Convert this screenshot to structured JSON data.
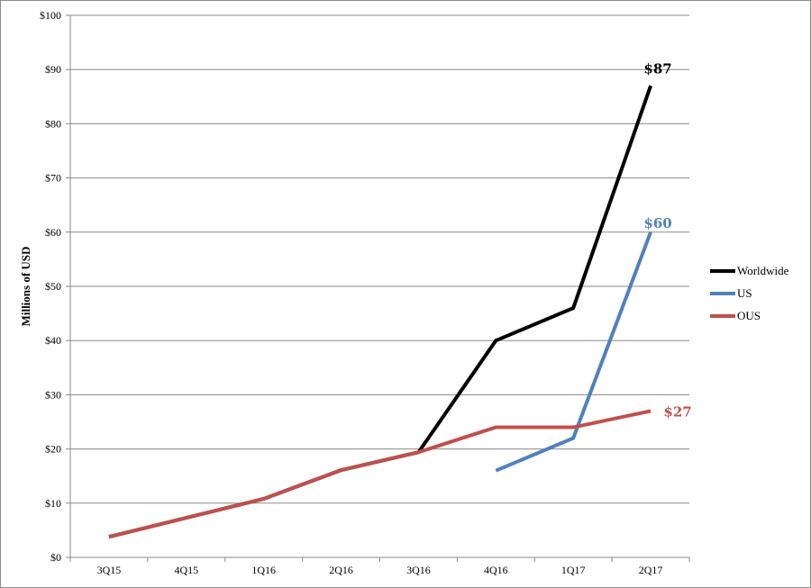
{
  "chart_data": {
    "type": "line",
    "ylabel": "Millions of USD",
    "ylim": [
      0,
      100
    ],
    "y_ticks": [
      "$0",
      "$10",
      "$20",
      "$30",
      "$40",
      "$50",
      "$60",
      "$70",
      "$80",
      "$90",
      "$100"
    ],
    "categories": [
      "3Q15",
      "4Q15",
      "1Q16",
      "2Q16",
      "3Q16",
      "4Q16",
      "1Q17",
      "2Q17"
    ],
    "grid": "horizontal",
    "legend_position": "right",
    "series": [
      {
        "name": "Worldwide",
        "color": "#000000",
        "values": [
          3.8,
          7.3,
          10.8,
          16.1,
          19.4,
          40,
          46,
          87
        ],
        "end_label": "$87"
      },
      {
        "name": "US",
        "color": "#4f81bd",
        "values": [
          null,
          null,
          null,
          null,
          null,
          16,
          22,
          60
        ],
        "end_label": "$60"
      },
      {
        "name": "OUS",
        "color": "#c0504d",
        "values": [
          3.8,
          7.3,
          10.8,
          16.1,
          19.4,
          24,
          24,
          27
        ],
        "end_label": "$27"
      }
    ]
  }
}
